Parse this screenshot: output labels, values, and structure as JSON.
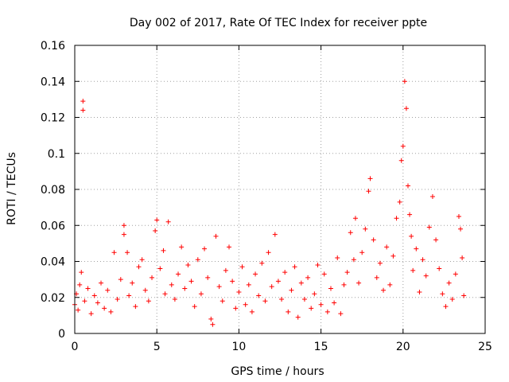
{
  "chart_data": {
    "type": "scatter",
    "title": "Day 002 of 2017, Rate Of TEC Index for receiver ppte",
    "xlabel": "GPS time / hours",
    "ylabel": "ROTI / TECUs",
    "xlim": [
      0,
      25
    ],
    "ylim": [
      0,
      0.16
    ],
    "xticks": [
      0,
      5,
      10,
      15,
      20,
      25
    ],
    "xtick_labels": [
      "0",
      "5",
      "10",
      "15",
      "20",
      "25"
    ],
    "yticks": [
      0,
      0.02,
      0.04,
      0.06,
      0.08,
      0.1,
      0.12,
      0.14,
      0.16
    ],
    "ytick_labels": [
      "0",
      "0.02",
      "0.04",
      "0.06",
      "0.08",
      "0.1",
      "0.12",
      "0.14",
      "0.16"
    ],
    "grid": true,
    "marker": "+",
    "color": "#ff0000",
    "series": [
      {
        "points": [
          [
            0.0,
            0.016
          ],
          [
            0.1,
            0.022
          ],
          [
            0.2,
            0.013
          ],
          [
            0.3,
            0.027
          ],
          [
            0.4,
            0.034
          ],
          [
            0.5,
            0.124
          ],
          [
            0.5,
            0.129
          ],
          [
            0.6,
            0.018
          ],
          [
            0.8,
            0.025
          ],
          [
            1.0,
            0.011
          ],
          [
            1.2,
            0.021
          ],
          [
            1.4,
            0.017
          ],
          [
            1.6,
            0.028
          ],
          [
            1.8,
            0.014
          ],
          [
            2.0,
            0.024
          ],
          [
            2.2,
            0.012
          ],
          [
            2.4,
            0.045
          ],
          [
            2.6,
            0.019
          ],
          [
            2.8,
            0.03
          ],
          [
            3.0,
            0.055
          ],
          [
            3.0,
            0.06
          ],
          [
            3.2,
            0.045
          ],
          [
            3.3,
            0.021
          ],
          [
            3.5,
            0.028
          ],
          [
            3.7,
            0.015
          ],
          [
            3.9,
            0.037
          ],
          [
            4.1,
            0.041
          ],
          [
            4.3,
            0.024
          ],
          [
            4.5,
            0.018
          ],
          [
            4.7,
            0.031
          ],
          [
            4.9,
            0.057
          ],
          [
            5.0,
            0.063
          ],
          [
            5.2,
            0.036
          ],
          [
            5.4,
            0.046
          ],
          [
            5.5,
            0.022
          ],
          [
            5.7,
            0.062
          ],
          [
            5.9,
            0.027
          ],
          [
            6.1,
            0.019
          ],
          [
            6.3,
            0.033
          ],
          [
            6.5,
            0.048
          ],
          [
            6.7,
            0.025
          ],
          [
            6.9,
            0.038
          ],
          [
            7.1,
            0.029
          ],
          [
            7.3,
            0.015
          ],
          [
            7.5,
            0.041
          ],
          [
            7.7,
            0.022
          ],
          [
            7.9,
            0.047
          ],
          [
            8.1,
            0.031
          ],
          [
            8.3,
            0.008
          ],
          [
            8.4,
            0.005
          ],
          [
            8.6,
            0.054
          ],
          [
            8.8,
            0.026
          ],
          [
            9.0,
            0.018
          ],
          [
            9.2,
            0.035
          ],
          [
            9.4,
            0.048
          ],
          [
            9.6,
            0.029
          ],
          [
            9.8,
            0.014
          ],
          [
            10.0,
            0.023
          ],
          [
            10.2,
            0.037
          ],
          [
            10.4,
            0.016
          ],
          [
            10.6,
            0.027
          ],
          [
            10.8,
            0.012
          ],
          [
            11.0,
            0.033
          ],
          [
            11.2,
            0.021
          ],
          [
            11.4,
            0.039
          ],
          [
            11.6,
            0.018
          ],
          [
            11.8,
            0.045
          ],
          [
            12.0,
            0.026
          ],
          [
            12.2,
            0.055
          ],
          [
            12.4,
            0.029
          ],
          [
            12.6,
            0.019
          ],
          [
            12.8,
            0.034
          ],
          [
            13.0,
            0.012
          ],
          [
            13.2,
            0.024
          ],
          [
            13.4,
            0.037
          ],
          [
            13.6,
            0.009
          ],
          [
            13.8,
            0.028
          ],
          [
            14.0,
            0.019
          ],
          [
            14.2,
            0.031
          ],
          [
            14.4,
            0.014
          ],
          [
            14.6,
            0.022
          ],
          [
            14.8,
            0.038
          ],
          [
            15.0,
            0.016
          ],
          [
            15.2,
            0.033
          ],
          [
            15.4,
            0.012
          ],
          [
            15.6,
            0.025
          ],
          [
            15.8,
            0.017
          ],
          [
            16.0,
            0.042
          ],
          [
            16.2,
            0.011
          ],
          [
            16.4,
            0.027
          ],
          [
            16.6,
            0.034
          ],
          [
            16.8,
            0.056
          ],
          [
            17.0,
            0.041
          ],
          [
            17.1,
            0.064
          ],
          [
            17.3,
            0.028
          ],
          [
            17.5,
            0.045
          ],
          [
            17.7,
            0.058
          ],
          [
            17.9,
            0.079
          ],
          [
            18.0,
            0.086
          ],
          [
            18.2,
            0.052
          ],
          [
            18.4,
            0.031
          ],
          [
            18.6,
            0.039
          ],
          [
            18.8,
            0.024
          ],
          [
            19.0,
            0.048
          ],
          [
            19.2,
            0.027
          ],
          [
            19.4,
            0.043
          ],
          [
            19.6,
            0.064
          ],
          [
            19.8,
            0.073
          ],
          [
            19.9,
            0.096
          ],
          [
            20.0,
            0.104
          ],
          [
            20.1,
            0.14
          ],
          [
            20.2,
            0.125
          ],
          [
            20.3,
            0.082
          ],
          [
            20.4,
            0.066
          ],
          [
            20.5,
            0.054
          ],
          [
            20.6,
            0.035
          ],
          [
            20.8,
            0.047
          ],
          [
            21.0,
            0.023
          ],
          [
            21.2,
            0.041
          ],
          [
            21.4,
            0.032
          ],
          [
            21.6,
            0.059
          ],
          [
            21.8,
            0.076
          ],
          [
            22.0,
            0.052
          ],
          [
            22.2,
            0.036
          ],
          [
            22.4,
            0.022
          ],
          [
            22.6,
            0.015
          ],
          [
            22.8,
            0.028
          ],
          [
            23.0,
            0.019
          ],
          [
            23.2,
            0.033
          ],
          [
            23.4,
            0.065
          ],
          [
            23.5,
            0.058
          ],
          [
            23.6,
            0.042
          ],
          [
            23.7,
            0.021
          ]
        ]
      }
    ]
  }
}
